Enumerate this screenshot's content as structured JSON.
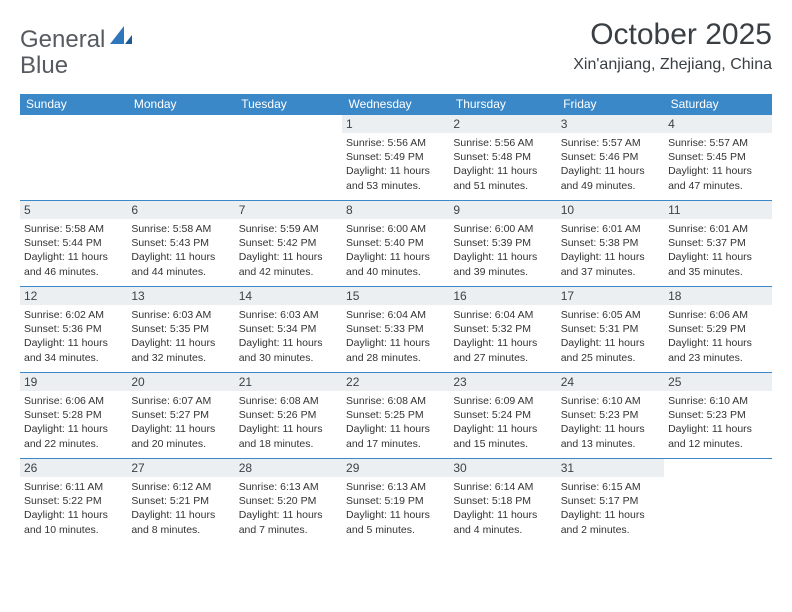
{
  "brand": {
    "part1": "General",
    "part2": "Blue"
  },
  "header": {
    "title": "October 2025",
    "subtitle": "Xin'anjiang, Zhejiang, China"
  },
  "colors": {
    "header_bg": "#3b88c8",
    "daynum_bg": "#eceff1",
    "border": "#3b88c8",
    "text": "#333333",
    "title": "#3a3f44"
  },
  "weekdays": [
    "Sunday",
    "Monday",
    "Tuesday",
    "Wednesday",
    "Thursday",
    "Friday",
    "Saturday"
  ],
  "weeks": [
    [
      {
        "empty": true
      },
      {
        "empty": true
      },
      {
        "empty": true
      },
      {
        "day": "1",
        "sunrise": "Sunrise: 5:56 AM",
        "sunset": "Sunset: 5:49 PM",
        "daylight": "Daylight: 11 hours and 53 minutes."
      },
      {
        "day": "2",
        "sunrise": "Sunrise: 5:56 AM",
        "sunset": "Sunset: 5:48 PM",
        "daylight": "Daylight: 11 hours and 51 minutes."
      },
      {
        "day": "3",
        "sunrise": "Sunrise: 5:57 AM",
        "sunset": "Sunset: 5:46 PM",
        "daylight": "Daylight: 11 hours and 49 minutes."
      },
      {
        "day": "4",
        "sunrise": "Sunrise: 5:57 AM",
        "sunset": "Sunset: 5:45 PM",
        "daylight": "Daylight: 11 hours and 47 minutes."
      }
    ],
    [
      {
        "day": "5",
        "sunrise": "Sunrise: 5:58 AM",
        "sunset": "Sunset: 5:44 PM",
        "daylight": "Daylight: 11 hours and 46 minutes."
      },
      {
        "day": "6",
        "sunrise": "Sunrise: 5:58 AM",
        "sunset": "Sunset: 5:43 PM",
        "daylight": "Daylight: 11 hours and 44 minutes."
      },
      {
        "day": "7",
        "sunrise": "Sunrise: 5:59 AM",
        "sunset": "Sunset: 5:42 PM",
        "daylight": "Daylight: 11 hours and 42 minutes."
      },
      {
        "day": "8",
        "sunrise": "Sunrise: 6:00 AM",
        "sunset": "Sunset: 5:40 PM",
        "daylight": "Daylight: 11 hours and 40 minutes."
      },
      {
        "day": "9",
        "sunrise": "Sunrise: 6:00 AM",
        "sunset": "Sunset: 5:39 PM",
        "daylight": "Daylight: 11 hours and 39 minutes."
      },
      {
        "day": "10",
        "sunrise": "Sunrise: 6:01 AM",
        "sunset": "Sunset: 5:38 PM",
        "daylight": "Daylight: 11 hours and 37 minutes."
      },
      {
        "day": "11",
        "sunrise": "Sunrise: 6:01 AM",
        "sunset": "Sunset: 5:37 PM",
        "daylight": "Daylight: 11 hours and 35 minutes."
      }
    ],
    [
      {
        "day": "12",
        "sunrise": "Sunrise: 6:02 AM",
        "sunset": "Sunset: 5:36 PM",
        "daylight": "Daylight: 11 hours and 34 minutes."
      },
      {
        "day": "13",
        "sunrise": "Sunrise: 6:03 AM",
        "sunset": "Sunset: 5:35 PM",
        "daylight": "Daylight: 11 hours and 32 minutes."
      },
      {
        "day": "14",
        "sunrise": "Sunrise: 6:03 AM",
        "sunset": "Sunset: 5:34 PM",
        "daylight": "Daylight: 11 hours and 30 minutes."
      },
      {
        "day": "15",
        "sunrise": "Sunrise: 6:04 AM",
        "sunset": "Sunset: 5:33 PM",
        "daylight": "Daylight: 11 hours and 28 minutes."
      },
      {
        "day": "16",
        "sunrise": "Sunrise: 6:04 AM",
        "sunset": "Sunset: 5:32 PM",
        "daylight": "Daylight: 11 hours and 27 minutes."
      },
      {
        "day": "17",
        "sunrise": "Sunrise: 6:05 AM",
        "sunset": "Sunset: 5:31 PM",
        "daylight": "Daylight: 11 hours and 25 minutes."
      },
      {
        "day": "18",
        "sunrise": "Sunrise: 6:06 AM",
        "sunset": "Sunset: 5:29 PM",
        "daylight": "Daylight: 11 hours and 23 minutes."
      }
    ],
    [
      {
        "day": "19",
        "sunrise": "Sunrise: 6:06 AM",
        "sunset": "Sunset: 5:28 PM",
        "daylight": "Daylight: 11 hours and 22 minutes."
      },
      {
        "day": "20",
        "sunrise": "Sunrise: 6:07 AM",
        "sunset": "Sunset: 5:27 PM",
        "daylight": "Daylight: 11 hours and 20 minutes."
      },
      {
        "day": "21",
        "sunrise": "Sunrise: 6:08 AM",
        "sunset": "Sunset: 5:26 PM",
        "daylight": "Daylight: 11 hours and 18 minutes."
      },
      {
        "day": "22",
        "sunrise": "Sunrise: 6:08 AM",
        "sunset": "Sunset: 5:25 PM",
        "daylight": "Daylight: 11 hours and 17 minutes."
      },
      {
        "day": "23",
        "sunrise": "Sunrise: 6:09 AM",
        "sunset": "Sunset: 5:24 PM",
        "daylight": "Daylight: 11 hours and 15 minutes."
      },
      {
        "day": "24",
        "sunrise": "Sunrise: 6:10 AM",
        "sunset": "Sunset: 5:23 PM",
        "daylight": "Daylight: 11 hours and 13 minutes."
      },
      {
        "day": "25",
        "sunrise": "Sunrise: 6:10 AM",
        "sunset": "Sunset: 5:23 PM",
        "daylight": "Daylight: 11 hours and 12 minutes."
      }
    ],
    [
      {
        "day": "26",
        "sunrise": "Sunrise: 6:11 AM",
        "sunset": "Sunset: 5:22 PM",
        "daylight": "Daylight: 11 hours and 10 minutes."
      },
      {
        "day": "27",
        "sunrise": "Sunrise: 6:12 AM",
        "sunset": "Sunset: 5:21 PM",
        "daylight": "Daylight: 11 hours and 8 minutes."
      },
      {
        "day": "28",
        "sunrise": "Sunrise: 6:13 AM",
        "sunset": "Sunset: 5:20 PM",
        "daylight": "Daylight: 11 hours and 7 minutes."
      },
      {
        "day": "29",
        "sunrise": "Sunrise: 6:13 AM",
        "sunset": "Sunset: 5:19 PM",
        "daylight": "Daylight: 11 hours and 5 minutes."
      },
      {
        "day": "30",
        "sunrise": "Sunrise: 6:14 AM",
        "sunset": "Sunset: 5:18 PM",
        "daylight": "Daylight: 11 hours and 4 minutes."
      },
      {
        "day": "31",
        "sunrise": "Sunrise: 6:15 AM",
        "sunset": "Sunset: 5:17 PM",
        "daylight": "Daylight: 11 hours and 2 minutes."
      },
      {
        "empty": true
      }
    ]
  ]
}
